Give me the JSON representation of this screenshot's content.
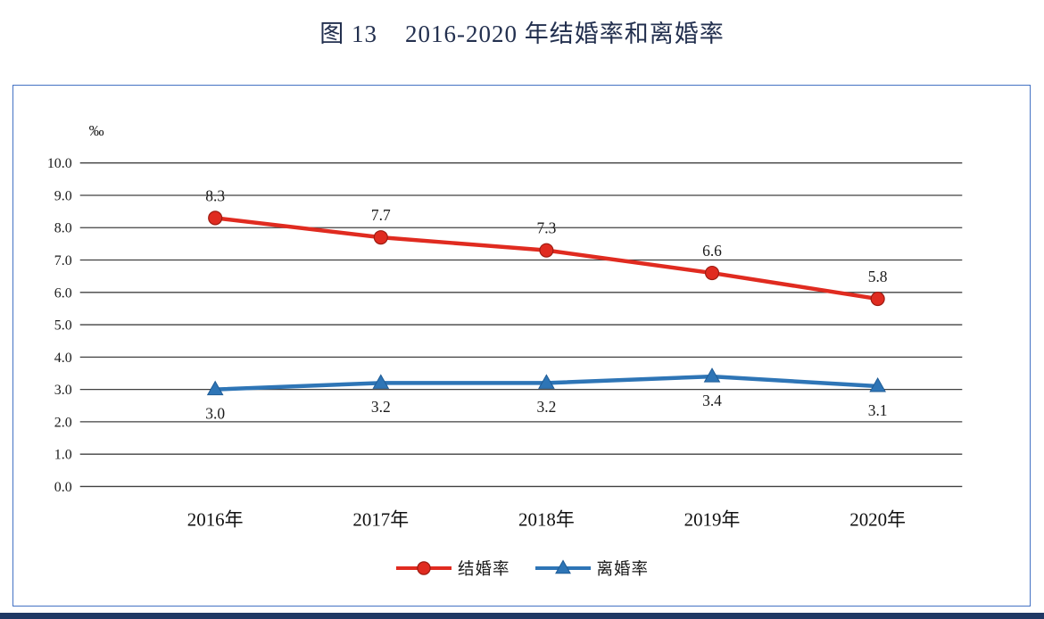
{
  "title": "图 13    2016-2020 年结婚率和离婚率",
  "colors": {
    "title": "#23304f",
    "frame_border": "#4472c4",
    "grid": "#404040",
    "marriage_line": "#e02b20",
    "marriage_marker_edge": "#9c1c12",
    "divorce_line": "#2e75b6",
    "divorce_marker_edge": "#1f5c96",
    "bottom_bar": "#1f3864"
  },
  "chart_data": {
    "type": "line",
    "title": "图 13 2016-2020 年结婚率和离婚率",
    "unit_label": "‰",
    "categories": [
      "2016年",
      "2017年",
      "2018年",
      "2019年",
      "2020年"
    ],
    "series": [
      {
        "name": "结婚率",
        "values": [
          8.3,
          7.7,
          7.3,
          6.6,
          5.8
        ],
        "color": "#e02b20",
        "marker": "circle",
        "label_position": "above"
      },
      {
        "name": "离婚率",
        "values": [
          3.0,
          3.2,
          3.2,
          3.4,
          3.1
        ],
        "color": "#2e75b6",
        "marker": "triangle",
        "label_position": "below"
      }
    ],
    "ylim": [
      0,
      10
    ],
    "ytick_step": 1,
    "ytick_labels": [
      "0.0",
      "1.0",
      "2.0",
      "3.0",
      "4.0",
      "5.0",
      "6.0",
      "7.0",
      "8.0",
      "9.0",
      "10.0"
    ],
    "grid": true,
    "legend_position": "bottom"
  }
}
